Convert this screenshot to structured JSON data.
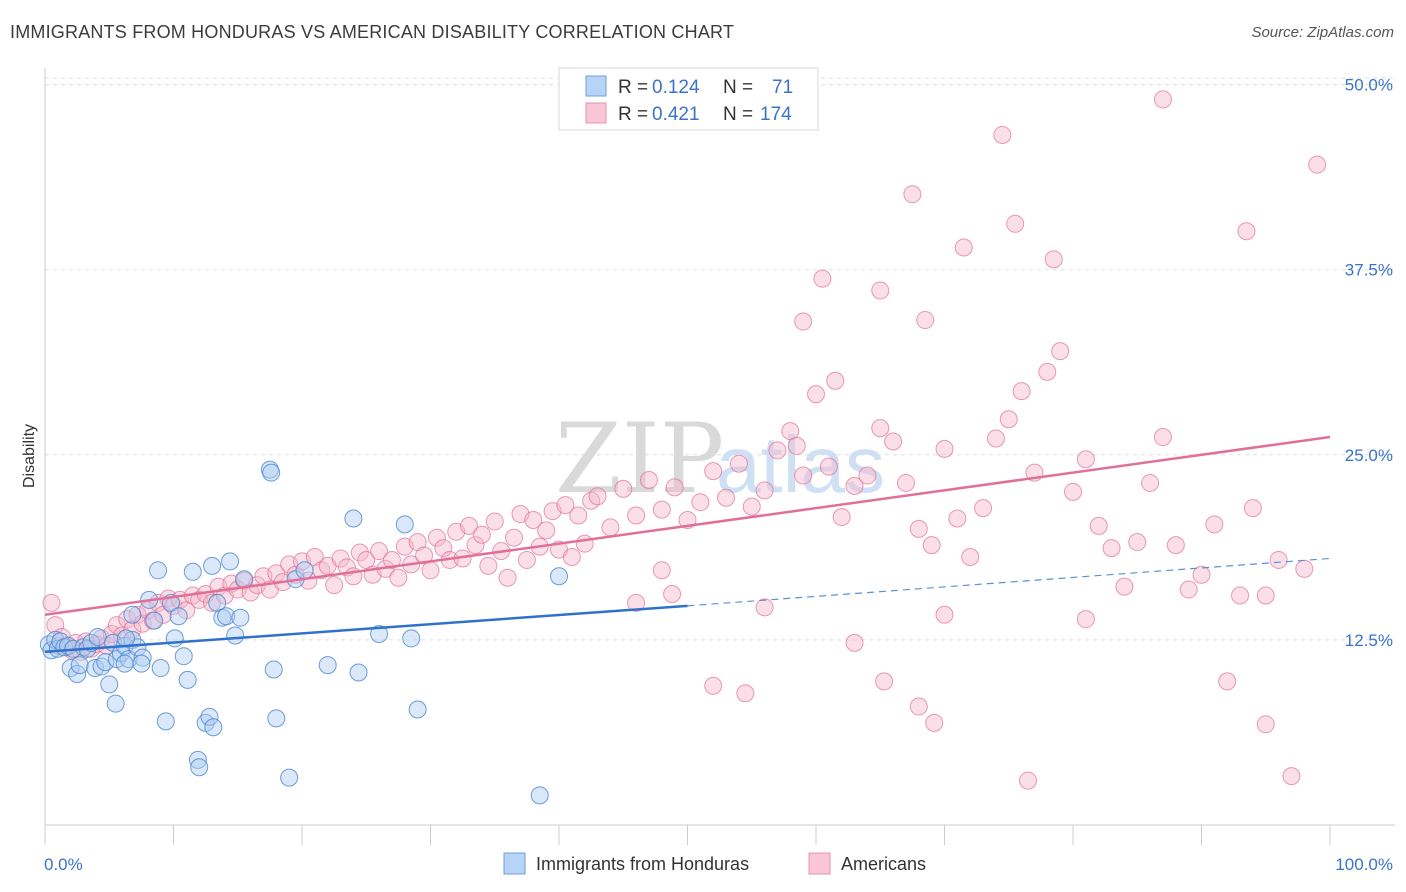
{
  "header": {
    "title": "IMMIGRANTS FROM HONDURAS VS AMERICAN DISABILITY CORRELATION CHART",
    "source": "Source: ZipAtlas.com"
  },
  "watermark": {
    "zip": "ZIP",
    "atlas": "atlas"
  },
  "colors": {
    "blue": "#4a86d0",
    "blue_fill": "#aeccf2",
    "pink": "#e07097",
    "pink_fill": "#f5b9cc",
    "tick_text": "#3b73c8"
  },
  "legend": {
    "rows": [
      {
        "r_label": "R =",
        "r_value": "0.124",
        "n_label": "N =",
        "n_value": "71"
      },
      {
        "r_label": "R =",
        "r_value": "0.421",
        "n_label": "N =",
        "n_value": "174"
      }
    ]
  },
  "bottom_legend": {
    "series1": "Immigrants from Honduras",
    "series2": "Americans"
  },
  "chart_data": {
    "type": "scatter",
    "ylabel": "Disability",
    "xlim": [
      0,
      100
    ],
    "ylim": [
      0,
      52
    ],
    "x_tick_labels": [
      "0.0%",
      "100.0%"
    ],
    "y_ticks": [
      12.5,
      25.0,
      37.5,
      50.0
    ],
    "y_tick_labels": [
      "12.5%",
      "25.0%",
      "37.5%",
      "50.0%"
    ],
    "grid": true,
    "series": [
      {
        "name": "Immigrants from Honduras",
        "color": "#4a86d0",
        "trend": {
          "x": [
            0,
            50
          ],
          "y": [
            11.7,
            14.8
          ],
          "dashed_to": [
            100,
            18.0
          ]
        },
        "points": [
          [
            0.3,
            12.2
          ],
          [
            0.5,
            11.8
          ],
          [
            0.8,
            12.5
          ],
          [
            1.0,
            11.9
          ],
          [
            1.2,
            12.4
          ],
          [
            1.5,
            12.0
          ],
          [
            1.8,
            12.1
          ],
          [
            2.0,
            10.6
          ],
          [
            2.2,
            11.9
          ],
          [
            2.5,
            10.2
          ],
          [
            2.7,
            10.8
          ],
          [
            3.0,
            12.0
          ],
          [
            3.3,
            11.9
          ],
          [
            3.6,
            12.3
          ],
          [
            3.9,
            10.6
          ],
          [
            4.1,
            12.7
          ],
          [
            4.4,
            10.7
          ],
          [
            4.7,
            11.0
          ],
          [
            5.0,
            9.5
          ],
          [
            5.3,
            12.3
          ],
          [
            5.6,
            11.2
          ],
          [
            5.9,
            11.6
          ],
          [
            6.2,
            12.1
          ],
          [
            6.5,
            11.2
          ],
          [
            6.8,
            12.5
          ],
          [
            7.2,
            12.0
          ],
          [
            5.5,
            8.2
          ],
          [
            6.2,
            10.9
          ],
          [
            7.6,
            11.3
          ],
          [
            6.3,
            12.6
          ],
          [
            6.8,
            14.2
          ],
          [
            7.5,
            10.9
          ],
          [
            8.1,
            15.2
          ],
          [
            8.5,
            13.8
          ],
          [
            9.0,
            10.6
          ],
          [
            9.4,
            7.0
          ],
          [
            9.8,
            15.0
          ],
          [
            10.1,
            12.6
          ],
          [
            10.4,
            14.1
          ],
          [
            10.8,
            11.4
          ],
          [
            11.1,
            9.8
          ],
          [
            11.5,
            17.1
          ],
          [
            11.9,
            4.4
          ],
          [
            12.0,
            3.9
          ],
          [
            12.5,
            6.9
          ],
          [
            12.8,
            7.3
          ],
          [
            13.1,
            6.6
          ],
          [
            13.4,
            15.0
          ],
          [
            13.8,
            14.0
          ],
          [
            14.1,
            14.1
          ],
          [
            14.4,
            17.8
          ],
          [
            14.8,
            12.8
          ],
          [
            15.2,
            14.0
          ],
          [
            15.5,
            16.6
          ],
          [
            13.0,
            17.5
          ],
          [
            8.8,
            17.2
          ],
          [
            17.8,
            10.5
          ],
          [
            18.0,
            7.2
          ],
          [
            19.0,
            3.2
          ],
          [
            19.5,
            16.6
          ],
          [
            20.2,
            17.2
          ],
          [
            22.0,
            10.8
          ],
          [
            24.4,
            10.3
          ],
          [
            17.5,
            24.0
          ],
          [
            17.6,
            23.8
          ],
          [
            24.0,
            20.7
          ],
          [
            26.0,
            12.9
          ],
          [
            29.0,
            7.8
          ],
          [
            28.0,
            20.3
          ],
          [
            28.5,
            12.6
          ],
          [
            40.0,
            16.8
          ],
          [
            38.5,
            2.0
          ]
        ]
      },
      {
        "name": "Americans",
        "color": "#e07097",
        "trend": {
          "x": [
            0,
            100
          ],
          "y": [
            14.2,
            26.2
          ]
        },
        "points": [
          [
            0.5,
            15.0
          ],
          [
            0.8,
            13.5
          ],
          [
            1.0,
            12.1
          ],
          [
            1.3,
            12.7
          ],
          [
            1.7,
            12.0
          ],
          [
            2.1,
            11.8
          ],
          [
            2.4,
            12.3
          ],
          [
            2.8,
            11.7
          ],
          [
            3.2,
            12.4
          ],
          [
            3.6,
            11.9
          ],
          [
            4.0,
            12.2
          ],
          [
            4.4,
            12.6
          ],
          [
            4.8,
            12.1
          ],
          [
            5.2,
            12.9
          ],
          [
            5.6,
            13.5
          ],
          [
            6.0,
            12.8
          ],
          [
            6.4,
            13.9
          ],
          [
            6.8,
            13.2
          ],
          [
            7.2,
            14.2
          ],
          [
            7.6,
            13.6
          ],
          [
            8.0,
            14.5
          ],
          [
            8.4,
            13.8
          ],
          [
            8.8,
            15.0
          ],
          [
            9.2,
            14.2
          ],
          [
            9.6,
            15.3
          ],
          [
            10.0,
            14.8
          ],
          [
            10.5,
            15.2
          ],
          [
            11.0,
            14.5
          ],
          [
            11.5,
            15.5
          ],
          [
            12.0,
            15.2
          ],
          [
            12.5,
            15.6
          ],
          [
            13.0,
            15.0
          ],
          [
            13.5,
            16.1
          ],
          [
            14.0,
            15.5
          ],
          [
            14.5,
            16.3
          ],
          [
            15.0,
            15.9
          ],
          [
            15.5,
            16.5
          ],
          [
            16.0,
            15.7
          ],
          [
            16.5,
            16.2
          ],
          [
            17.0,
            16.8
          ],
          [
            17.5,
            15.9
          ],
          [
            18.0,
            17.0
          ],
          [
            18.5,
            16.4
          ],
          [
            19.0,
            17.6
          ],
          [
            19.5,
            16.9
          ],
          [
            20.0,
            17.8
          ],
          [
            20.5,
            16.5
          ],
          [
            21.0,
            18.1
          ],
          [
            21.5,
            17.2
          ],
          [
            22.0,
            17.5
          ],
          [
            22.5,
            16.2
          ],
          [
            23.0,
            18.0
          ],
          [
            23.5,
            17.4
          ],
          [
            24.0,
            16.8
          ],
          [
            24.5,
            18.4
          ],
          [
            25.0,
            17.9
          ],
          [
            25.5,
            16.9
          ],
          [
            26.0,
            18.5
          ],
          [
            26.5,
            17.3
          ],
          [
            27.0,
            17.9
          ],
          [
            27.5,
            16.7
          ],
          [
            28.0,
            18.8
          ],
          [
            28.5,
            17.6
          ],
          [
            29.0,
            19.1
          ],
          [
            29.5,
            18.2
          ],
          [
            30.0,
            17.2
          ],
          [
            30.5,
            19.4
          ],
          [
            31.0,
            18.7
          ],
          [
            31.5,
            17.9
          ],
          [
            32.0,
            19.8
          ],
          [
            32.5,
            18.0
          ],
          [
            33.0,
            20.2
          ],
          [
            33.5,
            18.9
          ],
          [
            34.0,
            19.6
          ],
          [
            34.5,
            17.5
          ],
          [
            35.0,
            20.5
          ],
          [
            35.5,
            18.5
          ],
          [
            36.0,
            16.7
          ],
          [
            36.5,
            19.4
          ],
          [
            37.0,
            21.0
          ],
          [
            37.5,
            17.9
          ],
          [
            38.0,
            20.6
          ],
          [
            38.5,
            18.8
          ],
          [
            39.0,
            19.9
          ],
          [
            39.5,
            21.2
          ],
          [
            40.0,
            18.6
          ],
          [
            40.5,
            21.6
          ],
          [
            41.0,
            18.1
          ],
          [
            41.5,
            20.9
          ],
          [
            42.0,
            19.0
          ],
          [
            42.5,
            21.9
          ],
          [
            43.0,
            22.2
          ],
          [
            44.0,
            20.1
          ],
          [
            45.0,
            22.7
          ],
          [
            46.0,
            20.9
          ],
          [
            47.0,
            23.3
          ],
          [
            48.0,
            21.3
          ],
          [
            49.0,
            22.8
          ],
          [
            50.0,
            20.6
          ],
          [
            51.0,
            21.8
          ],
          [
            52.0,
            23.9
          ],
          [
            53.0,
            22.1
          ],
          [
            54.0,
            24.4
          ],
          [
            55.0,
            21.5
          ],
          [
            56.0,
            22.6
          ],
          [
            57.0,
            25.3
          ],
          [
            58.0,
            26.6
          ],
          [
            59.0,
            23.6
          ],
          [
            60.0,
            29.1
          ],
          [
            61.0,
            24.2
          ],
          [
            62.0,
            20.8
          ],
          [
            63.0,
            22.9
          ],
          [
            64.0,
            23.6
          ],
          [
            65.0,
            26.8
          ],
          [
            66.0,
            25.9
          ],
          [
            67.0,
            23.1
          ],
          [
            68.0,
            20.0
          ],
          [
            69.0,
            18.9
          ],
          [
            70.0,
            25.4
          ],
          [
            71.0,
            20.7
          ],
          [
            72.0,
            18.1
          ],
          [
            73.0,
            21.4
          ],
          [
            74.0,
            26.1
          ],
          [
            75.0,
            27.4
          ],
          [
            76.0,
            29.3
          ],
          [
            77.0,
            23.8
          ],
          [
            78.0,
            30.6
          ],
          [
            79.0,
            32.0
          ],
          [
            80.0,
            22.5
          ],
          [
            81.0,
            24.7
          ],
          [
            82.0,
            20.2
          ],
          [
            83.0,
            18.7
          ],
          [
            84.0,
            16.1
          ],
          [
            85.0,
            19.1
          ],
          [
            86.0,
            23.1
          ],
          [
            87.0,
            26.2
          ],
          [
            88.0,
            18.9
          ],
          [
            89.0,
            15.9
          ],
          [
            90.0,
            16.9
          ],
          [
            91.0,
            20.3
          ],
          [
            92.0,
            9.7
          ],
          [
            93.0,
            15.5
          ],
          [
            94.0,
            21.4
          ],
          [
            95.0,
            6.8
          ],
          [
            96.0,
            17.9
          ],
          [
            97.0,
            3.3
          ],
          [
            98.0,
            17.3
          ],
          [
            99.0,
            44.6
          ],
          [
            87.0,
            49.0
          ],
          [
            74.5,
            46.6
          ],
          [
            67.5,
            42.6
          ],
          [
            75.5,
            40.6
          ],
          [
            93.5,
            40.1
          ],
          [
            71.5,
            39.0
          ],
          [
            78.5,
            38.2
          ],
          [
            60.5,
            36.9
          ],
          [
            65.0,
            36.1
          ],
          [
            59.0,
            34.0
          ],
          [
            68.5,
            34.1
          ],
          [
            58.5,
            25.6
          ],
          [
            52.0,
            9.4
          ],
          [
            54.5,
            8.9
          ],
          [
            56.0,
            14.7
          ],
          [
            61.5,
            30.0
          ],
          [
            63.0,
            12.3
          ],
          [
            65.3,
            9.7
          ],
          [
            68.0,
            8.0
          ],
          [
            69.2,
            6.9
          ],
          [
            76.5,
            3.0
          ],
          [
            70.0,
            14.2
          ],
          [
            81.0,
            13.9
          ],
          [
            95.0,
            15.5
          ],
          [
            46.0,
            15.0
          ],
          [
            48.0,
            17.2
          ],
          [
            48.8,
            15.6
          ]
        ]
      }
    ]
  }
}
